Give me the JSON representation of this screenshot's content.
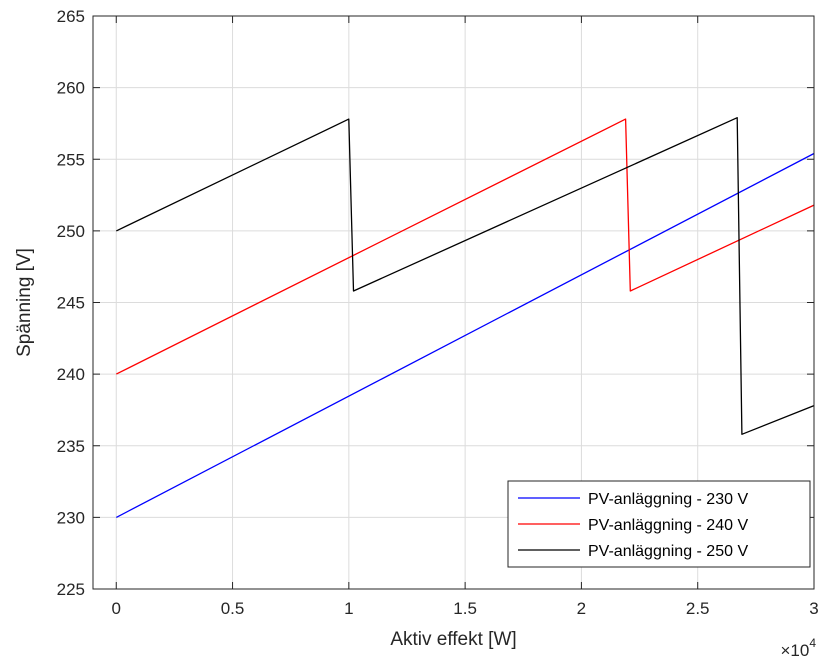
{
  "chart_data": {
    "type": "line",
    "title": "",
    "xlabel": "Aktiv effekt [W]",
    "ylabel": "Spänning [V]",
    "xlim": [
      -0.1,
      3.0
    ],
    "ylim": [
      225,
      265
    ],
    "x_multiplier_label": "×10",
    "x_multiplier_exponent": "4",
    "xticks": [
      0,
      0.5,
      1,
      1.5,
      2,
      2.5,
      3
    ],
    "xtick_labels": [
      "0",
      "0.5",
      "1",
      "1.5",
      "2",
      "2.5",
      "3"
    ],
    "yticks": [
      225,
      230,
      235,
      240,
      245,
      250,
      255,
      260,
      265
    ],
    "ytick_labels": [
      "225",
      "230",
      "235",
      "240",
      "245",
      "250",
      "255",
      "260",
      "265"
    ],
    "grid": true,
    "legend_position": "bottom-right",
    "series": [
      {
        "name": "PV-anläggning - 230 V",
        "color": "#0000ff",
        "points": [
          [
            0,
            230.0
          ],
          [
            3.0,
            255.4
          ]
        ]
      },
      {
        "name": "PV-anläggning - 240 V",
        "color": "#ff0000",
        "points": [
          [
            0,
            240.0
          ],
          [
            2.19,
            257.8
          ],
          [
            2.21,
            245.8
          ],
          [
            3.0,
            251.8
          ]
        ]
      },
      {
        "name": "PV-anläggning - 250 V",
        "color": "#000000",
        "points": [
          [
            0,
            250.0
          ],
          [
            1.0,
            257.8
          ],
          [
            1.02,
            245.8
          ],
          [
            2.67,
            257.9
          ],
          [
            2.69,
            235.8
          ],
          [
            3.0,
            237.8
          ]
        ]
      }
    ]
  }
}
